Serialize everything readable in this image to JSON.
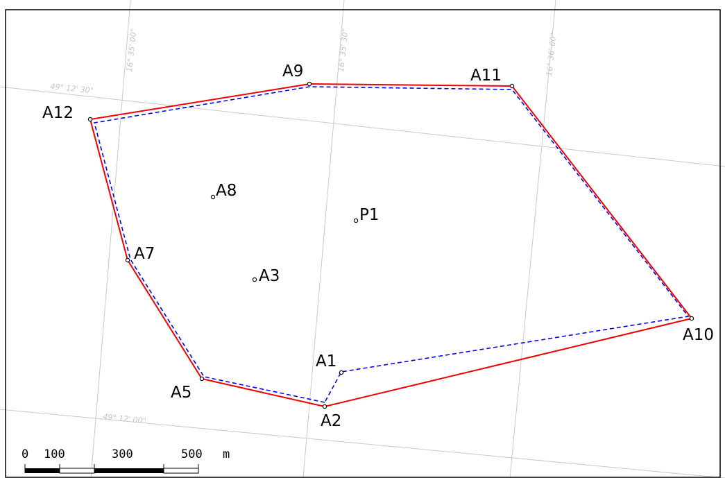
{
  "map": {
    "graticule": {
      "meridians": [
        "16° 35' 00\"",
        "16° 35' 30\"",
        "16° 36' 00\""
      ],
      "parallels": [
        "49° 12' 30\"",
        "49° 12' 00\""
      ],
      "color": "#c9c9c9"
    },
    "polygons": [
      {
        "id": "red",
        "color": "#ee0000",
        "style": "solid",
        "vertices": [
          "A2",
          "A5",
          "A7",
          "A12",
          "A9",
          "A11",
          "A10",
          "A2"
        ]
      },
      {
        "id": "blue",
        "color": "#0000ee",
        "style": "dashed",
        "vertices": [
          "A2",
          "A5",
          "A7",
          "A12",
          "A9",
          "A11",
          "A10",
          "A1",
          "A2"
        ]
      }
    ],
    "points": [
      {
        "id": "A1",
        "label": "A1"
      },
      {
        "id": "A2",
        "label": "A2"
      },
      {
        "id": "A3",
        "label": "A3"
      },
      {
        "id": "A5",
        "label": "A5"
      },
      {
        "id": "A7",
        "label": "A7"
      },
      {
        "id": "A8",
        "label": "A8"
      },
      {
        "id": "A9",
        "label": "A9"
      },
      {
        "id": "A10",
        "label": "A10"
      },
      {
        "id": "A11",
        "label": "A11"
      },
      {
        "id": "A12",
        "label": "A12"
      },
      {
        "id": "P1",
        "label": "P1"
      }
    ],
    "scale_bar": {
      "labels": [
        "0",
        "100",
        "300",
        "500",
        "m"
      ]
    }
  }
}
